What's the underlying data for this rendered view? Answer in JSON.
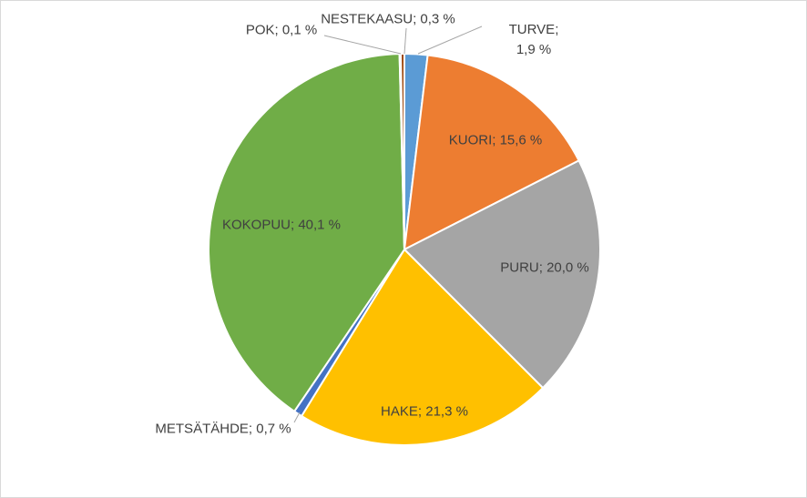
{
  "chart_data": {
    "type": "pie",
    "values": [
      1.9,
      15.6,
      20.0,
      21.3,
      0.7,
      40.1,
      0.1,
      0.3
    ],
    "value_labels": [
      "TURVE; 1,9 %",
      "KUORI; 15,6 %",
      "PURU; 20,0 %",
      "HAKE; 21,3 %",
      "METSÄTÄHDE; 0,7 %",
      "KOKOPUU; 40,1 %",
      "POK; 0,1 %",
      "NESTEKAASU; 0,3 %"
    ],
    "colors": [
      "#5b9bd5",
      "#ed7d31",
      "#a5a5a5",
      "#ffc000",
      "#4472c4",
      "#70ad47",
      "#255e91",
      "#9e480e"
    ]
  }
}
